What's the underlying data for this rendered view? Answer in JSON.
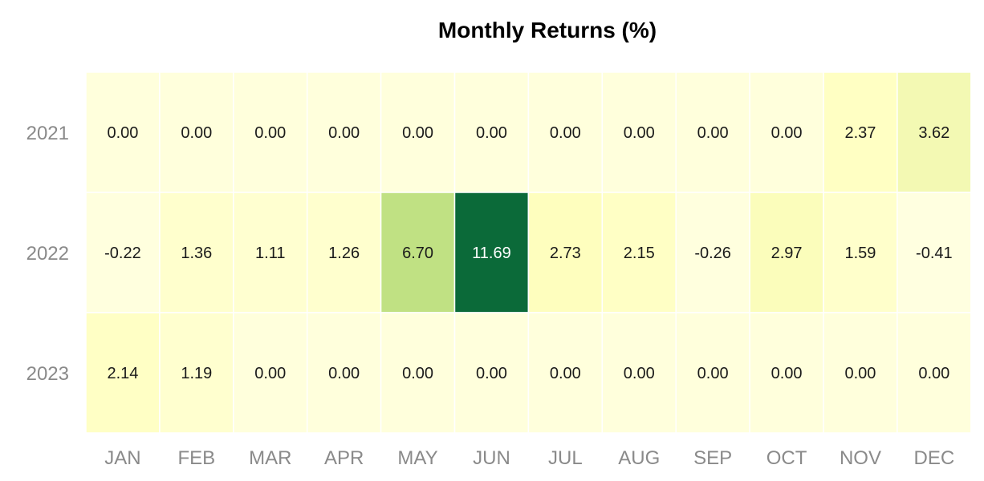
{
  "chart_data": {
    "type": "heatmap",
    "title": "Monthly Returns (%)",
    "xlabel": "",
    "ylabel": "",
    "x_categories": [
      "JAN",
      "FEB",
      "MAR",
      "APR",
      "MAY",
      "JUN",
      "JUL",
      "AUG",
      "SEP",
      "OCT",
      "NOV",
      "DEC"
    ],
    "y_categories": [
      "2021",
      "2022",
      "2023"
    ],
    "values": [
      [
        0.0,
        0.0,
        0.0,
        0.0,
        0.0,
        0.0,
        0.0,
        0.0,
        0.0,
        0.0,
        2.37,
        3.62
      ],
      [
        -0.22,
        1.36,
        1.11,
        1.26,
        6.7,
        11.69,
        2.73,
        2.15,
        -0.26,
        2.97,
        1.59,
        -0.41
      ],
      [
        2.14,
        1.19,
        0.0,
        0.0,
        0.0,
        0.0,
        0.0,
        0.0,
        0.0,
        0.0,
        0.0,
        0.0
      ]
    ],
    "value_format": "0.00",
    "colormap": "yellow-green",
    "color_low": "#ffffe0",
    "color_mid": "#cfe88a",
    "color_high": "#0b6a39",
    "legend": "none",
    "grid": false
  }
}
